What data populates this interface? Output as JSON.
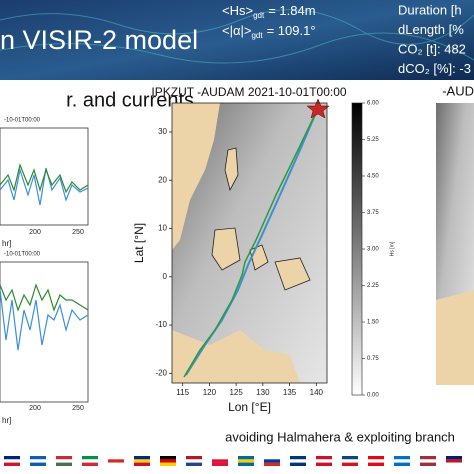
{
  "header": {
    "title": "n VISIR-2 model",
    "stats": [
      {
        "label": "<Hs>",
        "sub": "gdt",
        "value": "= 1.84m"
      },
      {
        "label": "<|α|>",
        "sub": "gdt",
        "value": "= 109.1°"
      }
    ],
    "right_stats": [
      "Duration [h",
      "dLength [%",
      "CO₂ [t]: 482",
      "dCO₂ [%]: -3"
    ]
  },
  "subtitle": "r. and currents",
  "left_plots": [
    {
      "title": "-10-01T00:00",
      "xlabel": "hr]",
      "xticks": [
        "200",
        "250"
      ]
    },
    {
      "title": "-10-01T00:00",
      "xlabel": "hr]",
      "xticks": [
        "200",
        "250"
      ]
    }
  ],
  "map": {
    "title": "IPKZUT  -AUDAM 2021-10-01T00:00",
    "xlabel": "Lon [°E]",
    "ylabel": "Lat [°N]",
    "xlim": [
      113,
      142
    ],
    "ylim": [
      -22,
      36
    ],
    "xticks": [
      115,
      120,
      125,
      130,
      135,
      140
    ],
    "yticks": [
      -20,
      -10,
      0,
      10,
      20,
      30
    ],
    "colorbar": {
      "label": "Hs [m]",
      "lim": [
        0,
        6
      ],
      "ticks": [
        {
          "value": 0,
          "label": "0.00"
        },
        {
          "value": 0.75,
          "label": "0.75"
        },
        {
          "value": 1.5,
          "label": "1.50"
        },
        {
          "value": 2.25,
          "label": "2.25"
        },
        {
          "value": 3,
          "label": "3.00"
        },
        {
          "value": 3.75,
          "label": "3.75"
        },
        {
          "value": 4.5,
          "label": "4.50"
        },
        {
          "value": 5.25,
          "label": "5.25"
        },
        {
          "value": 6,
          "label": "6.00"
        }
      ]
    }
  },
  "right_panel_title": "-AUD",
  "caption": "avoiding Halmahera & exploiting branch"
}
